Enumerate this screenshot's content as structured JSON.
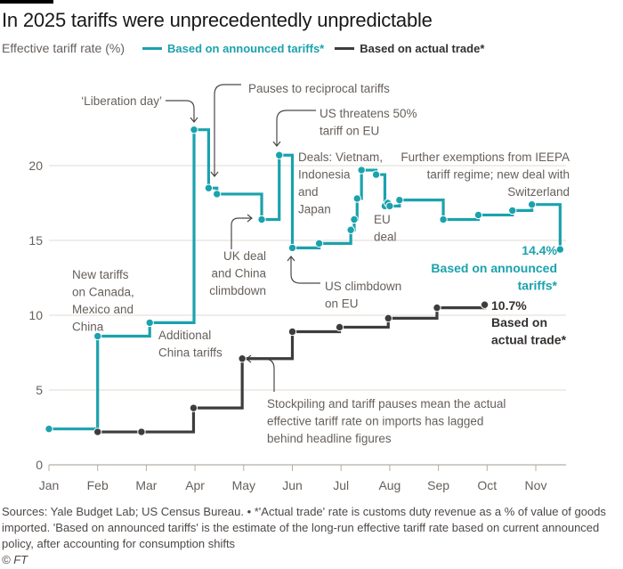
{
  "title": "In 2025 tariffs were unprecedentedly unpredictable",
  "legend": {
    "ylabel": "Effective tariff rate (%)",
    "items": [
      {
        "label": "Based on announced tariffs*",
        "color": "#1ba2ad"
      },
      {
        "label": "Based on actual trade*",
        "color": "#3d3d3d"
      }
    ]
  },
  "chart_data": {
    "type": "line",
    "step": true,
    "title": "In 2025 tariffs were unprecedentedly unpredictable",
    "ylabel": "Effective tariff rate (%)",
    "xlabel": "",
    "ylim": [
      0,
      23
    ],
    "yticks": [
      0,
      5,
      10,
      15,
      20
    ],
    "xticks": [
      "Jan",
      "Feb",
      "Mar",
      "Apr",
      "May",
      "Jun",
      "Jul",
      "Aug",
      "Sep",
      "Oct",
      "Nov"
    ],
    "grid": true,
    "series": [
      {
        "name": "Based on announced tariffs*",
        "color": "#1ba2ad",
        "end_label": "14.4%",
        "points": [
          {
            "x": 0.0,
            "y": 2.4
          },
          {
            "x": 1.0,
            "y": 8.6
          },
          {
            "x": 2.07,
            "y": 9.5
          },
          {
            "x": 2.98,
            "y": 22.4
          },
          {
            "x": 3.28,
            "y": 18.5
          },
          {
            "x": 3.45,
            "y": 18.1
          },
          {
            "x": 4.37,
            "y": 16.4
          },
          {
            "x": 4.73,
            "y": 20.7
          },
          {
            "x": 5.0,
            "y": 14.5
          },
          {
            "x": 5.55,
            "y": 14.8
          },
          {
            "x": 6.2,
            "y": 15.7
          },
          {
            "x": 6.27,
            "y": 16.4
          },
          {
            "x": 6.33,
            "y": 17.8
          },
          {
            "x": 6.42,
            "y": 19.7
          },
          {
            "x": 6.72,
            "y": 19.4
          },
          {
            "x": 6.9,
            "y": 17.3
          },
          {
            "x": 6.96,
            "y": 17.5
          },
          {
            "x": 7.0,
            "y": 17.3
          },
          {
            "x": 7.2,
            "y": 17.7
          },
          {
            "x": 8.1,
            "y": 16.4
          },
          {
            "x": 8.82,
            "y": 16.7
          },
          {
            "x": 9.52,
            "y": 17.0
          },
          {
            "x": 9.92,
            "y": 17.4
          },
          {
            "x": 10.5,
            "y": 14.4
          }
        ]
      },
      {
        "name": "Based on actual trade*",
        "color": "#3d3d3d",
        "end_label": "10.7%",
        "points": [
          {
            "x": 1.0,
            "y": 2.2
          },
          {
            "x": 1.9,
            "y": 2.2
          },
          {
            "x": 2.97,
            "y": 3.8
          },
          {
            "x": 3.97,
            "y": 7.1
          },
          {
            "x": 5.0,
            "y": 8.9
          },
          {
            "x": 5.97,
            "y": 9.2
          },
          {
            "x": 6.97,
            "y": 9.8
          },
          {
            "x": 7.97,
            "y": 10.5
          },
          {
            "x": 8.95,
            "y": 10.7
          }
        ]
      }
    ],
    "annotations": [
      {
        "id": "liberation",
        "lines": [
          "‘Liberation day’"
        ]
      },
      {
        "id": "pauses",
        "lines": [
          "Pauses to reciprocal tariffs"
        ]
      },
      {
        "id": "threat",
        "lines": [
          "US threatens 50%",
          "tariff on EU"
        ]
      },
      {
        "id": "deals",
        "lines": [
          "Deals: Vietnam,",
          "Indonesia",
          "and",
          "Japan"
        ]
      },
      {
        "id": "exemptions",
        "lines": [
          "Further exemptions from IEEPA",
          "tariff regime; new deal with",
          "Switzerland"
        ]
      },
      {
        "id": "eudeal",
        "lines": [
          "EU",
          "deal"
        ]
      },
      {
        "id": "ukdeal",
        "lines": [
          "UK deal",
          "and China",
          "climbdown"
        ]
      },
      {
        "id": "newtariffs",
        "lines": [
          "New tariffs",
          "on Canada,",
          "Mexico and",
          "China"
        ]
      },
      {
        "id": "climbdown",
        "lines": [
          "US climbdown",
          "on EU"
        ]
      },
      {
        "id": "china",
        "lines": [
          "Additional",
          "China tariffs"
        ]
      },
      {
        "id": "stockpiling",
        "lines": [
          "Stockpiling and tariff pauses mean the actual",
          "effective tariff rate on imports has lagged",
          "behind headline figures"
        ]
      },
      {
        "id": "announced_end",
        "lines": [
          "Based on announced",
          "tariffs*"
        ]
      },
      {
        "id": "actual_end",
        "lines": [
          "Based on",
          "actual trade*"
        ]
      }
    ]
  },
  "footer": {
    "source": "Sources: Yale Budget Lab; US Census Bureau. • *'Actual trade' rate is customs duty revenue as a % of value of goods imported. 'Based on announced tariffs' is the estimate of the long-run effective tariff rate based on current announced policy, after accounting for consumption shifts",
    "credit": "© FT"
  }
}
